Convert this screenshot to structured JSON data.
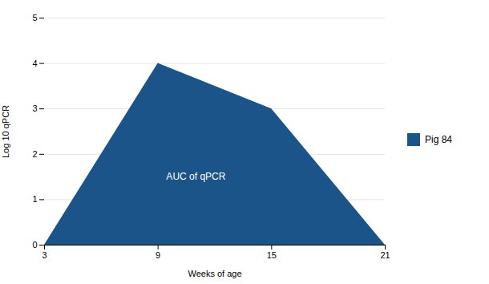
{
  "chart_data": {
    "type": "area",
    "x": [
      3,
      9,
      15,
      21
    ],
    "series": [
      {
        "name": "Pig 84",
        "color": "#1B5488",
        "values": [
          0,
          4,
          3,
          0
        ]
      }
    ],
    "xlabel": "Weeks of age",
    "ylabel": "Log 10 qPCR",
    "xlim": [
      3,
      21
    ],
    "ylim": [
      0,
      5
    ],
    "xticks": [
      3,
      9,
      15,
      21
    ],
    "yticks": [
      0,
      1,
      2,
      3,
      4,
      5
    ],
    "grid": true,
    "legend": "right",
    "annotations": [
      {
        "text": "AUC of qPCR",
        "x": 11.0,
        "y": 1.5,
        "color": "#ffffff"
      }
    ]
  }
}
